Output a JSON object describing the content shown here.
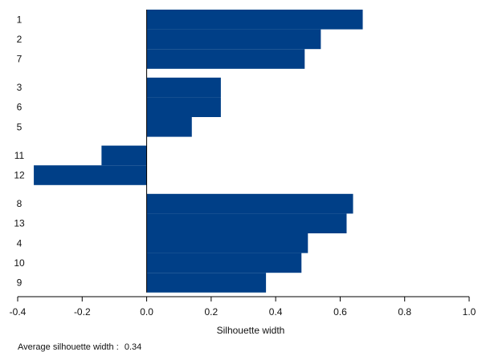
{
  "chart_data": {
    "type": "bar",
    "orientation": "horizontal",
    "xlabel": "Silhouette width",
    "xlim": [
      -0.4,
      1.0
    ],
    "xticks": [
      "-0.4",
      "-0.2",
      "0.0",
      "0.2",
      "0.4",
      "0.6",
      "0.8",
      "1.0"
    ],
    "bar_color": "#003f87",
    "clusters": [
      {
        "categories": [
          "1",
          "2",
          "7"
        ],
        "values": [
          0.67,
          0.54,
          0.49
        ]
      },
      {
        "categories": [
          "3",
          "6",
          "5"
        ],
        "values": [
          0.23,
          0.23,
          0.14
        ]
      },
      {
        "categories": [
          "11",
          "12"
        ],
        "values": [
          -0.14,
          -0.35
        ]
      },
      {
        "categories": [
          "8",
          "13",
          "4",
          "10",
          "9"
        ],
        "values": [
          0.64,
          0.62,
          0.5,
          0.48,
          0.37
        ]
      }
    ],
    "footer_label": "Average silhouette width :",
    "footer_value": "0.34"
  }
}
